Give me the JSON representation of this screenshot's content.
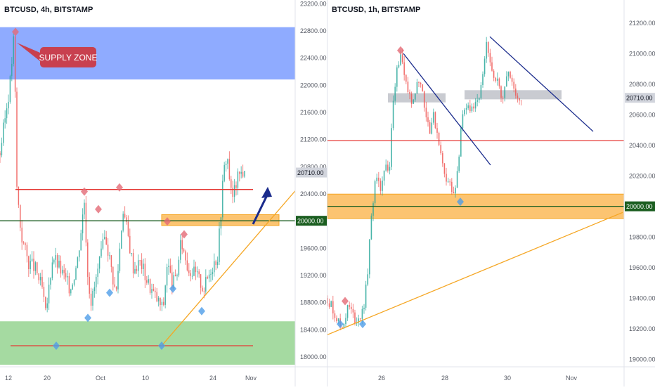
{
  "colors": {
    "up": "#26a69a",
    "down": "#ef5350",
    "supply": "#7b9cff",
    "demand": "#8fd18a",
    "zone": "#fbb041",
    "resistance": "#e53935",
    "support_green": "#1b5e20",
    "trendline": "#f5a623",
    "downtrend": "#1a2b8c",
    "callout": "#c8404f"
  },
  "chart_data": [
    {
      "type": "candlestick",
      "title": "BTCUSD, 4h, BITSTAMP",
      "ylim": [
        17850,
        23250
      ],
      "y_ticks": [
        "23200.00",
        "22800.00",
        "22400.00",
        "22000.00",
        "21600.00",
        "21200.00",
        "20800.00",
        "20400.00",
        "20000.00",
        "19600.00",
        "19200.00",
        "18800.00",
        "18400.00",
        "18000.00"
      ],
      "x_ticks": [
        "12",
        "20",
        "Oct",
        "10",
        "24",
        "Nov"
      ],
      "price_labels": [
        {
          "text": "20710.00",
          "value": 20710,
          "style": "gray"
        },
        {
          "text": "20000.00",
          "value": 20000,
          "style": "green"
        }
      ],
      "path": [
        [
          0,
          21000
        ],
        [
          14,
          22000
        ],
        [
          20,
          22750
        ],
        [
          24,
          20500
        ],
        [
          30,
          19800
        ],
        [
          40,
          19400
        ],
        [
          50,
          19300
        ],
        [
          60,
          19000
        ],
        [
          65,
          18600
        ],
        [
          75,
          19500
        ],
        [
          90,
          19200
        ],
        [
          100,
          19000
        ],
        [
          110,
          19400
        ],
        [
          120,
          20300
        ],
        [
          125,
          19200
        ],
        [
          130,
          18800
        ],
        [
          140,
          19300
        ],
        [
          150,
          19800
        ],
        [
          160,
          19200
        ],
        [
          165,
          18900
        ],
        [
          175,
          20200
        ],
        [
          180,
          19900
        ],
        [
          190,
          19300
        ],
        [
          200,
          19400
        ],
        [
          210,
          19100
        ],
        [
          220,
          18900
        ],
        [
          232,
          18700
        ],
        [
          238,
          19400
        ],
        [
          244,
          19100
        ],
        [
          250,
          19100
        ],
        [
          258,
          19700
        ],
        [
          268,
          19300
        ],
        [
          280,
          19200
        ],
        [
          290,
          19000
        ],
        [
          300,
          19300
        ],
        [
          310,
          19500
        ],
        [
          318,
          20700
        ],
        [
          323,
          21000
        ],
        [
          330,
          20300
        ],
        [
          337,
          20600
        ],
        [
          345,
          20750
        ],
        [
          350,
          20600
        ]
      ],
      "zones": [
        {
          "name": "SUPPLY ZONE",
          "y1": 22850,
          "y2": 22080,
          "color": "supply"
        },
        {
          "name": "demand",
          "y1": 18520,
          "y2": 17880,
          "color": "demand"
        },
        {
          "name": "orange",
          "y1": 20090,
          "y2": 19930,
          "color": "zone",
          "x1": 230,
          "x2": 397
        }
      ],
      "hlines": [
        {
          "y": 20460,
          "x1": 22,
          "x2": 360,
          "color": "resistance"
        },
        {
          "y": 20000,
          "x1": 0,
          "x2": 420,
          "color": "support_green"
        },
        {
          "y": 18160,
          "x1": 15,
          "x2": 360,
          "color": "resistance"
        }
      ],
      "lines": [
        {
          "x1": 230,
          "y1": 18160,
          "x2": 420,
          "y2": 20440,
          "color": "trendline"
        }
      ],
      "arrow": {
        "x1": 360,
        "y1": 19950,
        "x2": 381,
        "y2": 20500
      },
      "markers_red": [
        [
          22,
          22780
        ],
        [
          120,
          20430
        ],
        [
          140,
          20170
        ],
        [
          170,
          20490
        ],
        [
          238,
          19990
        ],
        [
          262,
          19800
        ]
      ],
      "markers_blue": [
        [
          80,
          18160
        ],
        [
          125,
          18570
        ],
        [
          156,
          18940
        ],
        [
          230,
          18160
        ],
        [
          246,
          19000
        ],
        [
          287,
          18670
        ]
      ],
      "annotation": "SUPPLY ZONE"
    },
    {
      "type": "candlestick",
      "title": "BTCUSD, 1h, BITSTAMP",
      "ylim": [
        18950,
        21350
      ],
      "y_ticks": [
        "21200.00",
        "21000.00",
        "20800.00",
        "20600.00",
        "20400.00",
        "20200.00",
        "20000.00",
        "19800.00",
        "19600.00",
        "19400.00",
        "19200.00",
        "19000.00"
      ],
      "x_ticks": [
        "26",
        "28",
        "30",
        "Nov"
      ],
      "price_labels": [
        {
          "text": "20710.00",
          "value": 20710,
          "style": "gray"
        },
        {
          "text": "20000.00",
          "value": 20000,
          "style": "green"
        }
      ],
      "path": [
        [
          0,
          19400
        ],
        [
          10,
          19300
        ],
        [
          20,
          19200
        ],
        [
          30,
          19350
        ],
        [
          40,
          19250
        ],
        [
          50,
          19300
        ],
        [
          56,
          19500
        ],
        [
          62,
          19900
        ],
        [
          68,
          20200
        ],
        [
          75,
          20100
        ],
        [
          82,
          20300
        ],
        [
          88,
          20200
        ],
        [
          92,
          20600
        ],
        [
          98,
          20900
        ],
        [
          104,
          21000
        ],
        [
          110,
          20800
        ],
        [
          120,
          20700
        ],
        [
          132,
          20850
        ],
        [
          140,
          20600
        ],
        [
          146,
          20500
        ],
        [
          150,
          20600
        ],
        [
          158,
          20450
        ],
        [
          162,
          20300
        ],
        [
          168,
          20200
        ],
        [
          174,
          20150
        ],
        [
          180,
          20050
        ],
        [
          186,
          20250
        ],
        [
          190,
          20550
        ],
        [
          200,
          20650
        ],
        [
          212,
          20650
        ],
        [
          220,
          20800
        ],
        [
          226,
          21050
        ],
        [
          232,
          20900
        ],
        [
          240,
          20850
        ],
        [
          248,
          20700
        ],
        [
          256,
          20900
        ],
        [
          262,
          20800
        ],
        [
          270,
          20720
        ],
        [
          276,
          20700
        ]
      ],
      "zones": [
        {
          "name": "orange",
          "y1": 20080,
          "y2": 19920,
          "color": "zone"
        },
        {
          "name": "gray1",
          "y1": 20740,
          "y2": 20680,
          "color": "gray",
          "x1": 86,
          "x2": 168
        },
        {
          "name": "gray2",
          "y1": 20760,
          "y2": 20700,
          "color": "gray",
          "x1": 195,
          "x2": 333
        }
      ],
      "hlines": [
        {
          "y": 20430,
          "x1": 0,
          "x2": 420,
          "color": "resistance"
        },
        {
          "y": 20000,
          "x1": 0,
          "x2": 420,
          "color": "support_green"
        }
      ],
      "lines": [
        {
          "x1": 0,
          "y1": 19160,
          "x2": 420,
          "y2": 19960,
          "color": "trendline"
        },
        {
          "x1": 108,
          "y1": 21000,
          "x2": 232,
          "y2": 20270,
          "color": "downtrend"
        },
        {
          "x1": 231,
          "y1": 21110,
          "x2": 378,
          "y2": 20490,
          "color": "downtrend"
        }
      ],
      "markers_red": [
        [
          25,
          19380
        ],
        [
          104,
          21020
        ]
      ],
      "markers_blue": [
        [
          18,
          19230
        ],
        [
          50,
          19230
        ],
        [
          189,
          20030
        ]
      ]
    }
  ]
}
